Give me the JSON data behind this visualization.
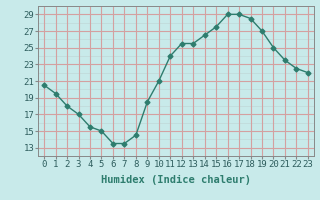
{
  "x": [
    0,
    1,
    2,
    3,
    4,
    5,
    6,
    7,
    8,
    9,
    10,
    11,
    12,
    13,
    14,
    15,
    16,
    17,
    18,
    19,
    20,
    21,
    22,
    23
  ],
  "y": [
    20.5,
    19.5,
    18.0,
    17.0,
    15.5,
    15.0,
    13.5,
    13.5,
    14.5,
    18.5,
    21.0,
    24.0,
    25.5,
    25.5,
    26.5,
    27.5,
    29.0,
    29.0,
    28.5,
    27.0,
    25.0,
    23.5,
    22.5,
    22.0
  ],
  "line_color": "#2e7d6e",
  "bg_color": "#c8eaea",
  "grid_color_major": "#d4a0a0",
  "grid_color_minor": "#c0d8d8",
  "xlabel": "Humidex (Indice chaleur)",
  "xlim": [
    -0.5,
    23.5
  ],
  "ylim": [
    12,
    30
  ],
  "yticks": [
    13,
    15,
    17,
    19,
    21,
    23,
    25,
    27,
    29
  ],
  "xticks": [
    0,
    1,
    2,
    3,
    4,
    5,
    6,
    7,
    8,
    9,
    10,
    11,
    12,
    13,
    14,
    15,
    16,
    17,
    18,
    19,
    20,
    21,
    22,
    23
  ],
  "marker": "D",
  "marker_size": 2.5,
  "line_width": 1.0,
  "font_size": 6.5,
  "xlabel_fontsize": 7.5
}
